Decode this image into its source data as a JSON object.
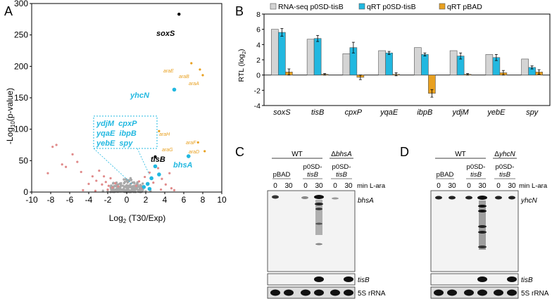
{
  "panels": {
    "A": {
      "letter": "A",
      "ylabel_main": "-Log",
      "ylabel_sub": "10",
      "ylabel_rest": "(p-value)",
      "xlabel_main": "Log",
      "xlabel_sub": "2",
      "xlabel_rest": " (T30/Exp)",
      "yticks": [
        "0",
        "50",
        "100",
        "150",
        "200",
        "250",
        "300"
      ],
      "xticks": [
        "-10",
        "-8",
        "-6",
        "-4",
        "-2",
        "0",
        "2",
        "4",
        "6",
        "8",
        "10"
      ],
      "labels": {
        "soxS": "soxS",
        "yhcN": "yhcN",
        "tisB": "tisB",
        "bhsA": "bhsA",
        "araE": "araE",
        "araB": "araB",
        "araA": "araA",
        "araH": "araH",
        "araG": "araG",
        "araF": "araF",
        "araD": "araD"
      },
      "box_lines": [
        "ydjM  cpxP",
        "yqaE  ibpB",
        "yebE  spy"
      ],
      "colors": {
        "grey": "#a8a8a8",
        "pink": "#e08a8a",
        "cyan": "#22b8e0",
        "orange": "#e8a020",
        "black": "#000000"
      }
    },
    "B": {
      "letter": "B",
      "ylabel": "RTL (log",
      "ylabel_sub": "2",
      "ylabel_end": ")",
      "legend": [
        "RNA-seq p0SD-tisB",
        "qRT p0SD-tisB",
        "qRT pBAD"
      ],
      "legend_colors": [
        "#d4d4d4",
        "#22b8e0",
        "#e8a020"
      ]
    },
    "C": {
      "letter": "C",
      "header_wt": "WT",
      "header_mut": "ΔbhsA",
      "lanes": [
        "pBAD",
        "p0SD-",
        "p0SD-"
      ],
      "lanes2": [
        "",
        "tisB",
        "tisB"
      ],
      "times": [
        "0",
        "30",
        "0",
        "30",
        "0",
        "30"
      ],
      "time_unit": "min L-ara",
      "probe_main": "bhsA",
      "probe_tis": "tisB",
      "probe_5s": "5S rRNA"
    },
    "D": {
      "letter": "D",
      "header_wt": "WT",
      "header_mut": "ΔyhcN",
      "lanes": [
        "pBAD",
        "p0SD-",
        "p0SD-"
      ],
      "lanes2": [
        "",
        "tisB",
        "tisB"
      ],
      "times": [
        "0",
        "30",
        "0",
        "30",
        "0",
        "30"
      ],
      "time_unit": "min L-ara",
      "probe_main": "yhcN",
      "probe_tis": "tisB",
      "probe_5s": "5S rRNA"
    }
  },
  "chart_data": [
    {
      "type": "scatter",
      "title": "",
      "xlabel": "Log2 (T30/Exp)",
      "ylabel": "-Log10(p-value)",
      "xlim": [
        -10,
        10
      ],
      "ylim": [
        0,
        300
      ],
      "highlighted_points": [
        {
          "name": "soxS",
          "x": 5.5,
          "y": 283,
          "color": "black"
        },
        {
          "name": "yhcN",
          "x": 5.0,
          "y": 163,
          "color": "cyan"
        },
        {
          "name": "tisB",
          "x": 3.0,
          "y": 56,
          "color": "black"
        },
        {
          "name": "bhsA",
          "x": 6.5,
          "y": 57,
          "color": "cyan"
        },
        {
          "name": "araE",
          "x": 6.8,
          "y": 205,
          "color": "orange"
        },
        {
          "name": "araB",
          "x": 7.7,
          "y": 195,
          "color": "orange"
        },
        {
          "name": "araA",
          "x": 8.0,
          "y": 186,
          "color": "orange"
        },
        {
          "name": "araH",
          "x": 3.4,
          "y": 97,
          "color": "orange"
        },
        {
          "name": "araG",
          "x": 2.2,
          "y": 75,
          "color": "orange"
        },
        {
          "name": "araF",
          "x": 7.5,
          "y": 79,
          "color": "orange"
        },
        {
          "name": "araD",
          "x": 8.2,
          "y": 65,
          "color": "orange"
        },
        {
          "name": "cyan-1",
          "x": 3.0,
          "y": 41,
          "color": "cyan"
        },
        {
          "name": "cyan-2",
          "x": 3.4,
          "y": 28,
          "color": "cyan"
        },
        {
          "name": "cyan-3",
          "x": 2.6,
          "y": 22,
          "color": "cyan"
        },
        {
          "name": "cyan-4",
          "x": 2.2,
          "y": 13,
          "color": "cyan"
        },
        {
          "name": "cyan-5",
          "x": 1.8,
          "y": 8,
          "color": "cyan"
        },
        {
          "name": "cyan-6",
          "x": 2.4,
          "y": 5,
          "color": "cyan"
        }
      ],
      "pink_points": [
        [
          -7.4,
          75
        ],
        [
          -7.8,
          72
        ],
        [
          -6.8,
          44
        ],
        [
          -6.4,
          40
        ],
        [
          -5.7,
          60
        ],
        [
          -8.3,
          30
        ],
        [
          -5.2,
          48
        ],
        [
          -4.8,
          32
        ],
        [
          -4.0,
          13
        ],
        [
          -3.6,
          25
        ],
        [
          -3.2,
          18
        ],
        [
          -2.9,
          34
        ],
        [
          -2.6,
          12
        ],
        [
          -2.4,
          25
        ],
        [
          -2.2,
          16
        ],
        [
          -1.9,
          10
        ],
        [
          -1.7,
          22
        ],
        [
          -1.5,
          7
        ],
        [
          -1.2,
          14
        ],
        [
          -0.9,
          9
        ],
        [
          1.0,
          10
        ],
        [
          1.3,
          17
        ],
        [
          1.6,
          6
        ],
        [
          1.9,
          24
        ],
        [
          2.4,
          31
        ],
        [
          2.8,
          15
        ],
        [
          3.3,
          38
        ],
        [
          3.7,
          21
        ],
        [
          4.1,
          12
        ],
        [
          4.5,
          30
        ],
        [
          -3.3,
          2
        ],
        [
          -2.0,
          4
        ],
        [
          3.6,
          4
        ],
        [
          4.7,
          6
        ],
        [
          -4.6,
          3
        ],
        [
          5.0,
          3
        ]
      ],
      "grey_points": [
        [
          -1.6,
          4
        ],
        [
          -1.4,
          7
        ],
        [
          -1.2,
          3
        ],
        [
          -1.1,
          9
        ],
        [
          -1.0,
          5
        ],
        [
          -0.9,
          12
        ],
        [
          -0.8,
          2
        ],
        [
          -0.7,
          8
        ],
        [
          -0.6,
          14
        ],
        [
          -0.5,
          4
        ],
        [
          -0.4,
          10
        ],
        [
          -0.3,
          6
        ],
        [
          -0.2,
          16
        ],
        [
          -0.1,
          3
        ],
        [
          0.0,
          11
        ],
        [
          0.1,
          5
        ],
        [
          0.2,
          18
        ],
        [
          0.3,
          8
        ],
        [
          0.4,
          13
        ],
        [
          0.5,
          3
        ],
        [
          0.6,
          15
        ],
        [
          0.7,
          7
        ],
        [
          0.8,
          10
        ],
        [
          0.9,
          4
        ],
        [
          1.0,
          6
        ],
        [
          1.1,
          12
        ],
        [
          1.2,
          3
        ],
        [
          1.3,
          9
        ],
        [
          1.4,
          5
        ],
        [
          1.5,
          8
        ],
        [
          -1.3,
          1
        ],
        [
          -0.6,
          1
        ],
        [
          0.0,
          1
        ],
        [
          0.6,
          1
        ],
        [
          1.2,
          1
        ],
        [
          -2.0,
          1
        ],
        [
          2.0,
          1
        ],
        [
          -0.3,
          20
        ],
        [
          0.4,
          22
        ],
        [
          -2.5,
          2
        ],
        [
          2.5,
          2
        ]
      ]
    },
    {
      "type": "bar",
      "title": "",
      "xlabel": "",
      "ylabel": "RTL (log2)",
      "ylim": [
        -4,
        8
      ],
      "yticks": [
        "-4",
        "-2",
        "0",
        "2",
        "4",
        "6",
        "8"
      ],
      "categories": [
        "soxS",
        "tisB",
        "cpxP",
        "yqaE",
        "ibpB",
        "ydjM",
        "yebE",
        "spy"
      ],
      "series": [
        {
          "name": "RNA-seq p0SD-tisB",
          "values": [
            6.0,
            4.7,
            2.8,
            3.2,
            3.6,
            3.2,
            2.7,
            2.1
          ],
          "errors": [
            0,
            0,
            0,
            0,
            0,
            0,
            0,
            0
          ]
        },
        {
          "name": "qRT p0SD-tisB",
          "values": [
            5.6,
            4.8,
            3.6,
            2.9,
            2.7,
            2.5,
            2.3,
            1.0
          ],
          "errors": [
            0.5,
            0.4,
            0.7,
            0.2,
            0.2,
            0.4,
            0.4,
            0.2
          ]
        },
        {
          "name": "qRT pBAD",
          "values": [
            0.4,
            0.1,
            -0.3,
            0.1,
            -2.4,
            0.1,
            0.3,
            0.4
          ],
          "errors": [
            0.4,
            0.1,
            0.3,
            0.2,
            0.5,
            0.1,
            0.3,
            0.3
          ]
        }
      ]
    }
  ]
}
